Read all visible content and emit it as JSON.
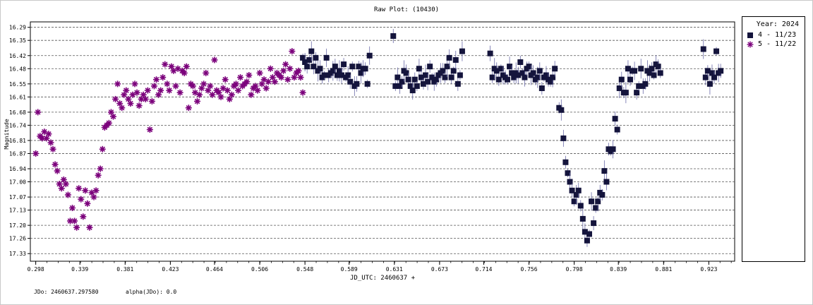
{
  "chart_data": {
    "type": "scatter",
    "title": "Raw Plot: (10430)",
    "xlabel": "JD_UTC: 2460637 +",
    "ylabel": "Magnitude",
    "xlim": [
      0.293,
      0.947
    ],
    "ylim": [
      17.365,
      16.265
    ],
    "y_inverted": true,
    "grid": "horizontal dashed",
    "xticks": [
      "0.298",
      "0.339",
      "0.381",
      "0.423",
      "0.464",
      "0.506",
      "0.548",
      "0.589",
      "0.631",
      "0.673",
      "0.714",
      "0.756",
      "0.798",
      "0.839",
      "0.881",
      "0.923"
    ],
    "yticks": [
      "16.29",
      "16.35",
      "16.42",
      "16.48",
      "16.55",
      "16.61",
      "16.68",
      "16.74",
      "16.81",
      "16.87",
      "16.94",
      "17.00",
      "17.07",
      "17.13",
      "17.20",
      "17.26",
      "17.33"
    ],
    "legend": {
      "title": "Year: 2024",
      "placement": "right",
      "entries": [
        "4 - 11/23",
        "5 - 11/22"
      ]
    },
    "series": [
      {
        "name": "4 - 11/23",
        "marker": "square",
        "color": "#14143c",
        "points": [
          [
            0.546,
            16.43
          ],
          [
            0.548,
            16.45
          ],
          [
            0.55,
            16.47
          ],
          [
            0.552,
            16.44
          ],
          [
            0.554,
            16.4
          ],
          [
            0.556,
            16.47
          ],
          [
            0.558,
            16.43
          ],
          [
            0.56,
            16.49
          ],
          [
            0.562,
            16.48
          ],
          [
            0.564,
            16.52
          ],
          [
            0.566,
            16.51
          ],
          [
            0.568,
            16.43
          ],
          [
            0.57,
            16.51
          ],
          [
            0.572,
            16.5
          ],
          [
            0.574,
            16.49
          ],
          [
            0.576,
            16.47
          ],
          [
            0.578,
            16.51
          ],
          [
            0.58,
            16.49
          ],
          [
            0.582,
            16.51
          ],
          [
            0.584,
            16.46
          ],
          [
            0.586,
            16.52
          ],
          [
            0.588,
            16.51
          ],
          [
            0.59,
            16.54
          ],
          [
            0.592,
            16.47
          ],
          [
            0.594,
            16.56
          ],
          [
            0.596,
            16.55
          ],
          [
            0.598,
            16.47
          ],
          [
            0.6,
            16.5
          ],
          [
            0.602,
            16.48
          ],
          [
            0.604,
            16.48
          ],
          [
            0.606,
            16.55
          ],
          [
            0.608,
            16.42
          ],
          [
            0.63,
            16.33
          ],
          [
            0.632,
            16.56
          ],
          [
            0.634,
            16.52
          ],
          [
            0.636,
            16.56
          ],
          [
            0.638,
            16.54
          ],
          [
            0.64,
            16.49
          ],
          [
            0.642,
            16.5
          ],
          [
            0.644,
            16.53
          ],
          [
            0.646,
            16.56
          ],
          [
            0.648,
            16.58
          ],
          [
            0.65,
            16.53
          ],
          [
            0.652,
            16.56
          ],
          [
            0.654,
            16.48
          ],
          [
            0.656,
            16.52
          ],
          [
            0.658,
            16.55
          ],
          [
            0.66,
            16.51
          ],
          [
            0.662,
            16.54
          ],
          [
            0.664,
            16.47
          ],
          [
            0.666,
            16.52
          ],
          [
            0.668,
            16.54
          ],
          [
            0.67,
            16.53
          ],
          [
            0.672,
            16.51
          ],
          [
            0.674,
            16.5
          ],
          [
            0.676,
            16.49
          ],
          [
            0.678,
            16.52
          ],
          [
            0.68,
            16.47
          ],
          [
            0.682,
            16.43
          ],
          [
            0.684,
            16.52
          ],
          [
            0.686,
            16.49
          ],
          [
            0.688,
            16.44
          ],
          [
            0.69,
            16.55
          ],
          [
            0.692,
            16.51
          ],
          [
            0.694,
            16.4
          ],
          [
            0.72,
            16.41
          ],
          [
            0.722,
            16.52
          ],
          [
            0.724,
            16.48
          ],
          [
            0.726,
            16.49
          ],
          [
            0.728,
            16.53
          ],
          [
            0.73,
            16.48
          ],
          [
            0.732,
            16.51
          ],
          [
            0.734,
            16.52
          ],
          [
            0.736,
            16.53
          ],
          [
            0.738,
            16.47
          ],
          [
            0.74,
            16.5
          ],
          [
            0.742,
            16.52
          ],
          [
            0.744,
            16.5
          ],
          [
            0.746,
            16.51
          ],
          [
            0.748,
            16.45
          ],
          [
            0.75,
            16.5
          ],
          [
            0.752,
            16.52
          ],
          [
            0.754,
            16.48
          ],
          [
            0.756,
            16.47
          ],
          [
            0.758,
            16.51
          ],
          [
            0.76,
            16.5
          ],
          [
            0.762,
            16.53
          ],
          [
            0.764,
            16.52
          ],
          [
            0.766,
            16.49
          ],
          [
            0.768,
            16.57
          ],
          [
            0.77,
            16.52
          ],
          [
            0.772,
            16.51
          ],
          [
            0.774,
            16.53
          ],
          [
            0.776,
            16.54
          ],
          [
            0.778,
            16.52
          ],
          [
            0.78,
            16.48
          ],
          [
            0.784,
            16.66
          ],
          [
            0.786,
            16.67
          ],
          [
            0.788,
            16.8
          ],
          [
            0.79,
            16.91
          ],
          [
            0.792,
            16.96
          ],
          [
            0.794,
            17.0
          ],
          [
            0.796,
            17.04
          ],
          [
            0.798,
            17.09
          ],
          [
            0.8,
            17.06
          ],
          [
            0.802,
            17.04
          ],
          [
            0.804,
            17.11
          ],
          [
            0.806,
            17.17
          ],
          [
            0.808,
            17.23
          ],
          [
            0.81,
            17.27
          ],
          [
            0.812,
            17.24
          ],
          [
            0.814,
            17.09
          ],
          [
            0.816,
            17.19
          ],
          [
            0.818,
            17.12
          ],
          [
            0.82,
            17.09
          ],
          [
            0.822,
            17.05
          ],
          [
            0.824,
            17.06
          ],
          [
            0.826,
            16.95
          ],
          [
            0.828,
            17.0
          ],
          [
            0.83,
            16.85
          ],
          [
            0.832,
            16.86
          ],
          [
            0.834,
            16.85
          ],
          [
            0.836,
            16.71
          ],
          [
            0.838,
            16.76
          ],
          [
            0.84,
            16.57
          ],
          [
            0.842,
            16.53
          ],
          [
            0.844,
            16.59
          ],
          [
            0.846,
            16.59
          ],
          [
            0.848,
            16.48
          ],
          [
            0.85,
            16.53
          ],
          [
            0.852,
            16.49
          ],
          [
            0.854,
            16.49
          ],
          [
            0.856,
            16.59
          ],
          [
            0.858,
            16.56
          ],
          [
            0.86,
            16.48
          ],
          [
            0.862,
            16.56
          ],
          [
            0.864,
            16.55
          ],
          [
            0.866,
            16.49
          ],
          [
            0.868,
            16.5
          ],
          [
            0.87,
            16.48
          ],
          [
            0.872,
            16.51
          ],
          [
            0.874,
            16.46
          ],
          [
            0.876,
            16.47
          ],
          [
            0.878,
            16.5
          ],
          [
            0.918,
            16.39
          ],
          [
            0.92,
            16.52
          ],
          [
            0.922,
            16.49
          ],
          [
            0.924,
            16.55
          ],
          [
            0.926,
            16.5
          ],
          [
            0.928,
            16.52
          ],
          [
            0.93,
            16.4
          ],
          [
            0.932,
            16.5
          ],
          [
            0.934,
            16.49
          ]
        ]
      },
      {
        "name": "5 - 11/22",
        "marker": "asterisk",
        "color": "#7b007b",
        "points": [
          [
            0.298,
            16.87
          ],
          [
            0.3,
            16.68
          ],
          [
            0.302,
            16.79
          ],
          [
            0.304,
            16.8
          ],
          [
            0.306,
            16.77
          ],
          [
            0.308,
            16.8
          ],
          [
            0.31,
            16.78
          ],
          [
            0.312,
            16.82
          ],
          [
            0.314,
            16.85
          ],
          [
            0.316,
            16.92
          ],
          [
            0.318,
            16.95
          ],
          [
            0.32,
            17.01
          ],
          [
            0.322,
            17.03
          ],
          [
            0.324,
            16.99
          ],
          [
            0.326,
            17.01
          ],
          [
            0.328,
            17.06
          ],
          [
            0.33,
            17.18
          ],
          [
            0.332,
            17.12
          ],
          [
            0.334,
            17.18
          ],
          [
            0.336,
            17.21
          ],
          [
            0.338,
            17.03
          ],
          [
            0.34,
            17.08
          ],
          [
            0.342,
            17.16
          ],
          [
            0.344,
            17.04
          ],
          [
            0.346,
            17.1
          ],
          [
            0.348,
            17.21
          ],
          [
            0.35,
            17.05
          ],
          [
            0.352,
            17.07
          ],
          [
            0.354,
            17.04
          ],
          [
            0.356,
            16.97
          ],
          [
            0.358,
            16.94
          ],
          [
            0.36,
            16.85
          ],
          [
            0.362,
            16.75
          ],
          [
            0.364,
            16.74
          ],
          [
            0.366,
            16.73
          ],
          [
            0.368,
            16.68
          ],
          [
            0.37,
            16.7
          ],
          [
            0.372,
            16.62
          ],
          [
            0.374,
            16.55
          ],
          [
            0.376,
            16.64
          ],
          [
            0.378,
            16.66
          ],
          [
            0.38,
            16.6
          ],
          [
            0.382,
            16.58
          ],
          [
            0.384,
            16.62
          ],
          [
            0.386,
            16.64
          ],
          [
            0.388,
            16.6
          ],
          [
            0.39,
            16.55
          ],
          [
            0.392,
            16.59
          ],
          [
            0.394,
            16.65
          ],
          [
            0.396,
            16.62
          ],
          [
            0.398,
            16.6
          ],
          [
            0.4,
            16.62
          ],
          [
            0.402,
            16.58
          ],
          [
            0.404,
            16.76
          ],
          [
            0.406,
            16.63
          ],
          [
            0.408,
            16.56
          ],
          [
            0.41,
            16.53
          ],
          [
            0.412,
            16.6
          ],
          [
            0.414,
            16.58
          ],
          [
            0.416,
            16.52
          ],
          [
            0.418,
            16.46
          ],
          [
            0.42,
            16.55
          ],
          [
            0.422,
            16.58
          ],
          [
            0.424,
            16.47
          ],
          [
            0.426,
            16.49
          ],
          [
            0.428,
            16.56
          ],
          [
            0.43,
            16.48
          ],
          [
            0.432,
            16.59
          ],
          [
            0.434,
            16.49
          ],
          [
            0.436,
            16.5
          ],
          [
            0.438,
            16.47
          ],
          [
            0.44,
            16.66
          ],
          [
            0.442,
            16.55
          ],
          [
            0.444,
            16.56
          ],
          [
            0.446,
            16.59
          ],
          [
            0.448,
            16.63
          ],
          [
            0.45,
            16.6
          ],
          [
            0.452,
            16.57
          ],
          [
            0.454,
            16.55
          ],
          [
            0.456,
            16.5
          ],
          [
            0.458,
            16.58
          ],
          [
            0.46,
            16.56
          ],
          [
            0.462,
            16.6
          ],
          [
            0.464,
            16.44
          ],
          [
            0.466,
            16.58
          ],
          [
            0.468,
            16.59
          ],
          [
            0.47,
            16.61
          ],
          [
            0.472,
            16.57
          ],
          [
            0.474,
            16.53
          ],
          [
            0.476,
            16.58
          ],
          [
            0.478,
            16.62
          ],
          [
            0.48,
            16.6
          ],
          [
            0.482,
            16.56
          ],
          [
            0.484,
            16.55
          ],
          [
            0.486,
            16.58
          ],
          [
            0.488,
            16.52
          ],
          [
            0.49,
            16.56
          ],
          [
            0.492,
            16.55
          ],
          [
            0.494,
            16.54
          ],
          [
            0.496,
            16.51
          ],
          [
            0.498,
            16.6
          ],
          [
            0.5,
            16.57
          ],
          [
            0.502,
            16.56
          ],
          [
            0.504,
            16.58
          ],
          [
            0.506,
            16.5
          ],
          [
            0.508,
            16.55
          ],
          [
            0.51,
            16.53
          ],
          [
            0.512,
            16.57
          ],
          [
            0.514,
            16.54
          ],
          [
            0.516,
            16.48
          ],
          [
            0.518,
            16.52
          ],
          [
            0.52,
            16.54
          ],
          [
            0.522,
            16.5
          ],
          [
            0.524,
            16.51
          ],
          [
            0.526,
            16.52
          ],
          [
            0.528,
            16.49
          ],
          [
            0.53,
            16.46
          ],
          [
            0.532,
            16.53
          ],
          [
            0.534,
            16.48
          ],
          [
            0.536,
            16.4
          ],
          [
            0.538,
            16.52
          ],
          [
            0.54,
            16.5
          ],
          [
            0.542,
            16.49
          ],
          [
            0.544,
            16.52
          ],
          [
            0.546,
            16.59
          ]
        ]
      }
    ]
  },
  "footer": {
    "jdo": "JDo: 2460637.297580",
    "alpha": "alpha(JDo): 0.0"
  }
}
